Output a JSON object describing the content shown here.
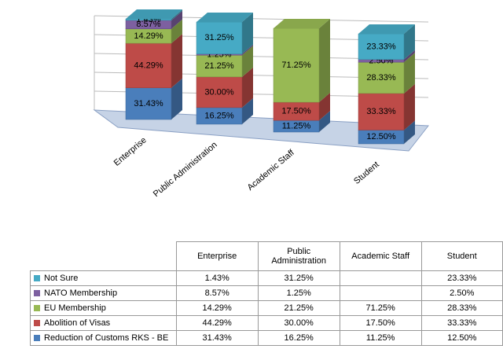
{
  "chart_data": {
    "type": "bar3d-stacked",
    "categories": [
      "Enterprise",
      "Public Administration",
      "Academic Staff",
      "Student"
    ],
    "ylim": [
      0,
      100
    ],
    "series": [
      {
        "name": "Reduction of Customs RKS - BE",
        "color": "#4a7ebb",
        "values": [
          31.43,
          16.25,
          11.25,
          12.5
        ],
        "value_labels": [
          "31.43%",
          "16.25%",
          "11.25%",
          "12.50%"
        ]
      },
      {
        "name": "Abolition of Visas",
        "color": "#be4b48",
        "values": [
          44.29,
          30,
          17.5,
          33.33
        ],
        "value_labels": [
          "44.29%",
          "30.00%",
          "17.50%",
          "33.33%"
        ]
      },
      {
        "name": "EU Membership",
        "color": "#98b954",
        "values": [
          14.29,
          21.25,
          71.25,
          28.33
        ],
        "value_labels": [
          "14.29%",
          "21.25%",
          "71.25%",
          "28.33%"
        ]
      },
      {
        "name": "NATO Membership",
        "color": "#7d60a0",
        "values": [
          8.57,
          1.25,
          null,
          2.5
        ],
        "value_labels": [
          "8.57%",
          "1.25%",
          null,
          "2.50%"
        ]
      },
      {
        "name": "Not Sure",
        "color": "#46aac5",
        "values": [
          1.43,
          31.25,
          null,
          23.33
        ],
        "value_labels": [
          "1.43%",
          "31.25%",
          null,
          "23.33%"
        ]
      }
    ]
  }
}
